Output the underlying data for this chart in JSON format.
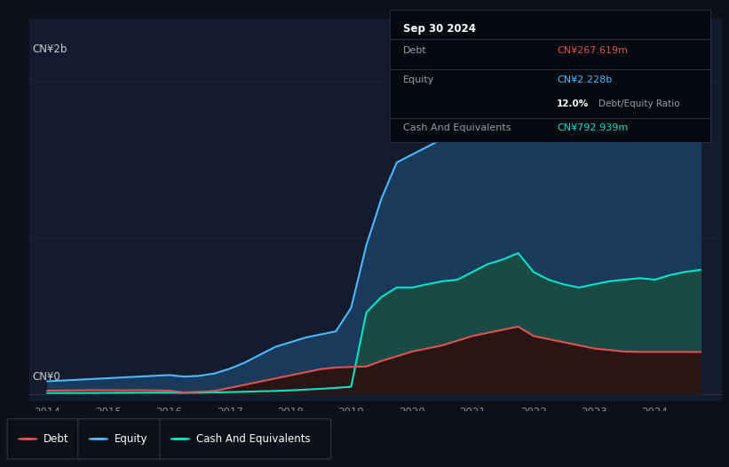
{
  "background_color": "#0d1117",
  "plot_bg_color": "#131b2e",
  "title_box": {
    "date": "Sep 30 2024",
    "debt_label": "Debt",
    "debt_value": "CN¥267.619m",
    "equity_label": "Equity",
    "equity_value": "CN¥2.228b",
    "ratio_value": "12.0%",
    "ratio_label": "Debt/Equity Ratio",
    "cash_label": "Cash And Equivalents",
    "cash_value": "CN¥792.939m"
  },
  "y_label_top": "CN¥2b",
  "y_label_bottom": "CN¥0",
  "x_ticks": [
    2014,
    2015,
    2016,
    2017,
    2018,
    2019,
    2020,
    2021,
    2022,
    2023,
    2024
  ],
  "debt_color": "#e05252",
  "equity_color": "#4db8ff",
  "cash_color": "#00e5cc",
  "equity_fill_color": "#1a3a5c",
  "cash_fill_color": "#1a4a44",
  "debt_fill_color": "#2a1515",
  "years": [
    2014.0,
    2014.25,
    2014.5,
    2014.75,
    2015.0,
    2015.25,
    2015.5,
    2015.75,
    2016.0,
    2016.25,
    2016.5,
    2016.75,
    2017.0,
    2017.25,
    2017.5,
    2017.75,
    2018.0,
    2018.25,
    2018.5,
    2018.75,
    2019.0,
    2019.25,
    2019.5,
    2019.75,
    2020.0,
    2020.25,
    2020.5,
    2020.75,
    2021.0,
    2021.25,
    2021.5,
    2021.75,
    2022.0,
    2022.25,
    2022.5,
    2022.75,
    2023.0,
    2023.25,
    2023.5,
    2023.75,
    2024.0,
    2024.25,
    2024.5,
    2024.75
  ],
  "equity": [
    0.08,
    0.085,
    0.09,
    0.095,
    0.1,
    0.105,
    0.11,
    0.115,
    0.12,
    0.11,
    0.115,
    0.13,
    0.16,
    0.2,
    0.25,
    0.3,
    0.33,
    0.36,
    0.38,
    0.4,
    0.55,
    0.95,
    1.25,
    1.48,
    1.53,
    1.58,
    1.63,
    1.68,
    1.78,
    1.88,
    1.93,
    1.98,
    1.9,
    1.86,
    1.88,
    1.91,
    1.93,
    1.95,
    1.98,
    2.03,
    2.08,
    2.13,
    2.18,
    2.228
  ],
  "cash": [
    0.005,
    0.005,
    0.005,
    0.005,
    0.006,
    0.006,
    0.007,
    0.007,
    0.007,
    0.006,
    0.007,
    0.009,
    0.011,
    0.013,
    0.016,
    0.018,
    0.022,
    0.027,
    0.032,
    0.038,
    0.045,
    0.52,
    0.62,
    0.68,
    0.68,
    0.7,
    0.72,
    0.73,
    0.78,
    0.83,
    0.86,
    0.9,
    0.78,
    0.73,
    0.7,
    0.68,
    0.7,
    0.72,
    0.73,
    0.74,
    0.73,
    0.76,
    0.78,
    0.793
  ],
  "debt": [
    0.02,
    0.021,
    0.022,
    0.023,
    0.023,
    0.022,
    0.023,
    0.022,
    0.02,
    0.009,
    0.013,
    0.018,
    0.038,
    0.058,
    0.078,
    0.098,
    0.118,
    0.138,
    0.158,
    0.168,
    0.172,
    0.175,
    0.21,
    0.24,
    0.27,
    0.29,
    0.31,
    0.34,
    0.37,
    0.39,
    0.41,
    0.43,
    0.37,
    0.35,
    0.33,
    0.31,
    0.29,
    0.28,
    0.27,
    0.268,
    0.268,
    0.268,
    0.268,
    0.2676
  ]
}
